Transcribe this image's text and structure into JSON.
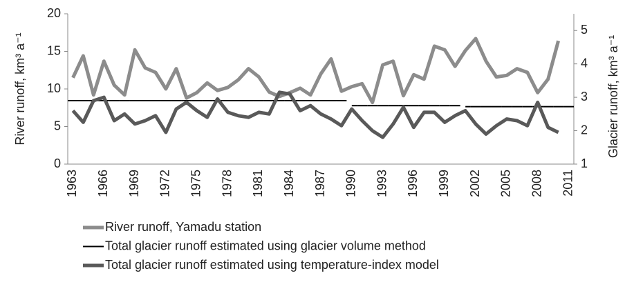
{
  "chart_data": {
    "type": "line",
    "ylabel": "River runoff, km³ a⁻¹",
    "y2label": "Glacier runoff, km³ a⁻¹",
    "categories": [
      "1963",
      null,
      null,
      "1966",
      null,
      null,
      "1969",
      null,
      null,
      "1972",
      null,
      null,
      "1975",
      null,
      null,
      "1978",
      null,
      null,
      "1981",
      null,
      null,
      "1984",
      null,
      null,
      "1987",
      null,
      null,
      "1990",
      null,
      null,
      "1993",
      null,
      null,
      "1996",
      null,
      null,
      "1999",
      null,
      null,
      "2002",
      null,
      null,
      "2005",
      null,
      null,
      "2008",
      null,
      null,
      "2011"
    ],
    "ylim": [
      0,
      20
    ],
    "yticks": [
      0,
      5,
      10,
      15,
      20
    ],
    "y2lim": [
      1,
      5.5
    ],
    "y2ticks": [
      1,
      2,
      3,
      4,
      5
    ],
    "series": [
      {
        "name": "River runoff, Yamadu station",
        "color": "#8c8c8c",
        "width": 5,
        "values": [
          11.5,
          14.4,
          9.2,
          13.7,
          10.5,
          9.2,
          15.2,
          12.8,
          12.2,
          10.0,
          12.7,
          8.8,
          9.5,
          10.8,
          9.8,
          10.2,
          11.2,
          12.7,
          11.6,
          9.6,
          9.0,
          9.5,
          10.1,
          9.2,
          12.0,
          14.0,
          9.7,
          10.3,
          10.7,
          8.2,
          13.2,
          13.7,
          9.1,
          11.9,
          11.3,
          15.7,
          15.2,
          13.0,
          15.1,
          16.7,
          13.7,
          11.6,
          11.8,
          12.7,
          12.2,
          9.5,
          11.3,
          16.4,
          null
        ]
      },
      {
        "name": "Total glacier runoff estimated using glacier volume method",
        "color": "#000000",
        "width": 2,
        "axis": "y2",
        "drawstyle": "steps",
        "values": [
          2.9,
          2.9,
          2.9,
          2.9,
          2.9,
          2.9,
          2.9,
          2.9,
          2.9,
          2.9,
          2.9,
          2.9,
          2.9,
          2.9,
          2.9,
          2.9,
          2.9,
          2.9,
          2.9,
          2.9,
          2.9,
          2.9,
          2.9,
          2.9,
          2.9,
          2.9,
          2.9,
          2.75,
          2.75,
          2.75,
          2.75,
          2.75,
          2.75,
          2.75,
          2.75,
          2.75,
          2.75,
          2.75,
          2.72,
          2.72,
          2.72,
          2.72,
          2.72,
          2.72,
          2.72,
          2.72,
          2.72,
          2.72,
          2.72
        ]
      },
      {
        "name": "Total glacier runoff estimated using temperature-index model",
        "color": "#595959",
        "width": 5,
        "axis": "y2",
        "values": [
          2.6,
          2.25,
          2.9,
          3.0,
          2.3,
          2.5,
          2.2,
          2.3,
          2.45,
          1.95,
          2.65,
          2.85,
          2.6,
          2.4,
          2.95,
          2.55,
          2.45,
          2.4,
          2.55,
          2.5,
          3.15,
          3.1,
          2.6,
          2.75,
          2.5,
          2.35,
          2.15,
          2.65,
          2.3,
          2.0,
          1.8,
          2.2,
          2.7,
          2.1,
          2.55,
          2.55,
          2.25,
          2.45,
          2.6,
          2.2,
          1.9,
          2.15,
          2.35,
          2.3,
          2.15,
          2.85,
          2.1,
          1.95,
          null
        ]
      }
    ]
  }
}
